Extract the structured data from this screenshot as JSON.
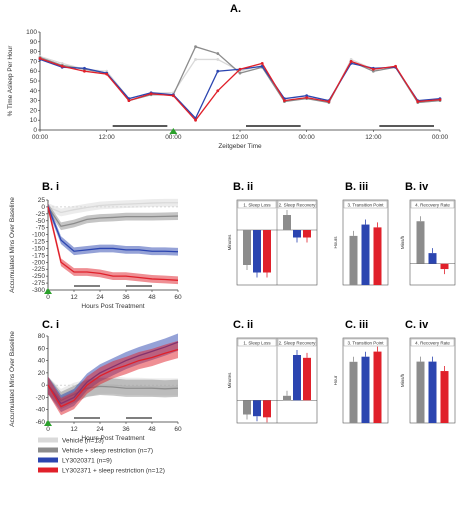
{
  "figure": {
    "panel_A": "A.",
    "panel_Bi": "B. i",
    "panel_Bii": "B. ii",
    "panel_Biii": "B. iii",
    "panel_Biv": "B. iv",
    "panel_Ci": "C. i",
    "panel_Cii": "C. ii",
    "panel_Ciii": "C. iii",
    "panel_Civ": "C. iv"
  },
  "legend": [
    {
      "label": "Vehicle (n=13)",
      "color": "#d9d9d9"
    },
    {
      "label": "Vehicle + sleep restriction (n=7)",
      "color": "#8c8c8c"
    },
    {
      "label": "LY3020371 (n=9)",
      "color": "#2b45b0"
    },
    {
      "label": "LY302371 + sleep restriction (n=12)",
      "color": "#e0202a"
    }
  ],
  "colors": {
    "vehicle": "#d9d9d9",
    "vehicle_sr": "#8c8c8c",
    "ly": "#2b45b0",
    "ly_sr": "#e0202a"
  },
  "chart_data": [
    {
      "id": "A",
      "type": "line",
      "ylabel": "% Time Asleep Per Hour",
      "xlabel": "Zeitgeber Time",
      "ylim": [
        0,
        100
      ],
      "yticks": [
        0,
        10,
        20,
        30,
        40,
        50,
        60,
        70,
        80,
        90,
        100
      ],
      "xticks": [
        "00:00",
        "12:00",
        "00:00",
        "12:00",
        "00:00",
        "12:00",
        "00:00"
      ],
      "x_hours": [
        0,
        4,
        8,
        12,
        16,
        20,
        24,
        28,
        32,
        36,
        40,
        44,
        48,
        52,
        56,
        60,
        64,
        68,
        72
      ],
      "series": [
        {
          "name": "Vehicle (n=13)",
          "color": "#d9d9d9",
          "values": [
            75,
            68,
            62,
            60,
            32,
            38,
            38,
            72,
            72,
            60,
            66,
            30,
            33,
            28,
            72,
            62,
            65,
            28,
            30
          ]
        },
        {
          "name": "Vehicle + sleep restriction (n=7)",
          "color": "#8c8c8c",
          "values": [
            74,
            66,
            62,
            58,
            30,
            36,
            36,
            85,
            78,
            58,
            64,
            29,
            32,
            28,
            70,
            60,
            64,
            28,
            30
          ]
        },
        {
          "name": "LY3020371 (n=9)",
          "color": "#2b45b0",
          "values": [
            72,
            64,
            63,
            58,
            32,
            38,
            36,
            12,
            60,
            62,
            65,
            32,
            35,
            30,
            68,
            63,
            64,
            30,
            32
          ]
        },
        {
          "name": "LY302371 + sleep restriction (n=12)",
          "color": "#e0202a",
          "values": [
            73,
            65,
            60,
            57,
            30,
            37,
            35,
            10,
            40,
            62,
            68,
            30,
            33,
            29,
            70,
            62,
            65,
            29,
            31
          ]
        }
      ]
    },
    {
      "id": "B.i",
      "type": "line",
      "ylabel": "Accumulated Mins Over Baseline",
      "xlabel": "Hours Post Treatment",
      "ylim": [
        -300,
        25
      ],
      "yticks": [
        25,
        0,
        -25,
        -50,
        -75,
        -100,
        -125,
        -150,
        -175,
        -200,
        -225,
        -250,
        -275,
        -300
      ],
      "xticks": [
        0,
        12,
        24,
        36,
        48,
        60
      ],
      "x": [
        0,
        6,
        12,
        18,
        24,
        30,
        36,
        42,
        48,
        54,
        60
      ],
      "series": [
        {
          "name": "Vehicle (n=13)",
          "color": "#d9d9d9",
          "values": [
            0,
            -20,
            -10,
            -2,
            5,
            8,
            10,
            12,
            14,
            15,
            15
          ]
        },
        {
          "name": "Vehicle + sleep restriction (n=7)",
          "color": "#8c8c8c",
          "values": [
            0,
            -70,
            -60,
            -45,
            -40,
            -38,
            -35,
            -35,
            -35,
            -34,
            -33
          ]
        },
        {
          "name": "LY3020371 (n=9)",
          "color": "#2b45b0",
          "values": [
            0,
            -120,
            -160,
            -155,
            -150,
            -150,
            -155,
            -155,
            -160,
            -160,
            -162
          ]
        },
        {
          "name": "LY302371 + sleep restriction (n=12)",
          "color": "#e0202a",
          "values": [
            0,
            -200,
            -235,
            -235,
            -240,
            -250,
            -250,
            -255,
            -260,
            -262,
            -265
          ]
        }
      ]
    },
    {
      "id": "B.ii",
      "type": "bar",
      "ylabel": "Minutes",
      "groups": [
        "1. Sleep Loss",
        "2. Sleep Recovery"
      ],
      "series": [
        {
          "name": "Vehicle + sleep restriction (n=7)",
          "color": "#8c8c8c",
          "values": [
            -70,
            30
          ]
        },
        {
          "name": "LY3020371 (n=9)",
          "color": "#2b45b0",
          "values": [
            -85,
            -15
          ]
        },
        {
          "name": "LY302371 + sleep restriction (n=12)",
          "color": "#e0202a",
          "values": [
            -85,
            -15
          ]
        }
      ]
    },
    {
      "id": "B.iii",
      "type": "bar",
      "ylabel": "Hours",
      "title": "3. Transition Point",
      "series": [
        {
          "name": "values",
          "values": [
            5.2,
            6.4,
            6.1
          ]
        }
      ]
    },
    {
      "id": "B.iv",
      "type": "bar",
      "ylabel": "Mins/h",
      "title": "4. Recovery Rate",
      "series": [
        {
          "name": "values",
          "values": [
            8,
            2,
            -1
          ]
        }
      ]
    },
    {
      "id": "C.i",
      "type": "line",
      "ylabel": "Accumulated Mins Over Baseline",
      "xlabel": "Hours Post Treatment",
      "ylim": [
        -60,
        80
      ],
      "yticks": [
        80,
        60,
        40,
        20,
        0,
        -20,
        -40,
        -60
      ],
      "xticks": [
        0,
        12,
        24,
        36,
        48,
        60
      ],
      "x": [
        0,
        6,
        12,
        18,
        24,
        30,
        36,
        42,
        48,
        54,
        60
      ],
      "series": [
        {
          "name": "Vehicle (n=13)",
          "color": "#d9d9d9",
          "values": [
            0,
            -20,
            -10,
            -5,
            0,
            0,
            -2,
            -2,
            -3,
            -3,
            -3
          ]
        },
        {
          "name": "Vehicle + sleep restriction (n=7)",
          "color": "#8c8c8c",
          "values": [
            0,
            -25,
            -15,
            -5,
            -2,
            -3,
            -5,
            -5,
            -5,
            -6,
            -5
          ]
        },
        {
          "name": "LY3020371 (n=9)",
          "color": "#2b45b0",
          "values": [
            0,
            -30,
            -20,
            5,
            20,
            30,
            40,
            48,
            55,
            62,
            70
          ]
        },
        {
          "name": "LY302371 + sleep restriction (n=12)",
          "color": "#e0202a",
          "values": [
            0,
            -35,
            -25,
            0,
            15,
            25,
            32,
            40,
            45,
            52,
            58
          ]
        }
      ]
    },
    {
      "id": "C.ii",
      "type": "bar",
      "ylabel": "Minutes",
      "groups": [
        "1. Sleep Loss",
        "2. Sleep Recovery"
      ],
      "series": [
        {
          "name": "Vehicle + sleep restriction (n=7)",
          "color": "#8c8c8c",
          "values": [
            -25,
            8
          ]
        },
        {
          "name": "LY3020371 (n=9)",
          "color": "#2b45b0",
          "values": [
            -28,
            80
          ]
        },
        {
          "name": "LY302371 + sleep restriction (n=12)",
          "color": "#e0202a",
          "values": [
            -30,
            75
          ]
        }
      ]
    },
    {
      "id": "C.iii",
      "type": "bar",
      "ylabel": "Hour",
      "title": "3. Transition Point",
      "series": [
        {
          "name": "values",
          "values": [
            7.2,
            7.8,
            8.4
          ]
        }
      ]
    },
    {
      "id": "C.iv",
      "type": "bar",
      "ylabel": "Mins/h",
      "title": "4. Recovery Rate",
      "series": [
        {
          "name": "values",
          "values": [
            13,
            13,
            11
          ]
        }
      ]
    }
  ]
}
